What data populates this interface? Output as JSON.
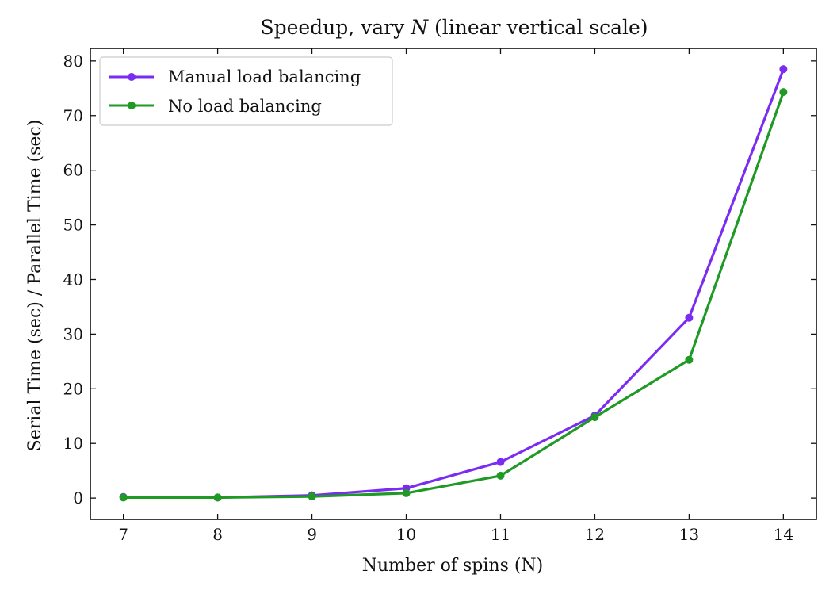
{
  "chart_data": {
    "type": "line",
    "title": "Speedup, vary N (linear vertical scale)",
    "title_parts": {
      "before": "Speedup, vary ",
      "var": "N",
      "after": " (linear vertical scale)"
    },
    "xlabel": "Number of spins (N)",
    "ylabel": "Serial Time (sec) / Parallel Time (sec)",
    "x": [
      7,
      8,
      9,
      10,
      11,
      12,
      13,
      14
    ],
    "xlim": [
      6.65,
      14.35
    ],
    "ylim": [
      -3.9,
      82.3
    ],
    "xticks": [
      7,
      8,
      9,
      10,
      11,
      12,
      13,
      14
    ],
    "yticks": [
      0,
      10,
      20,
      30,
      40,
      50,
      60,
      70,
      80
    ],
    "grid": false,
    "legend_position": "top-left",
    "series": [
      {
        "name": "Manual load balancing",
        "color": "#7a2cf2",
        "values": [
          0.2,
          0.1,
          0.5,
          1.8,
          6.6,
          15.1,
          33.0,
          78.5
        ]
      },
      {
        "name": "No load balancing",
        "color": "#1f9a25",
        "values": [
          0.1,
          0.1,
          0.3,
          0.9,
          4.1,
          14.8,
          25.3,
          74.3
        ]
      }
    ]
  }
}
